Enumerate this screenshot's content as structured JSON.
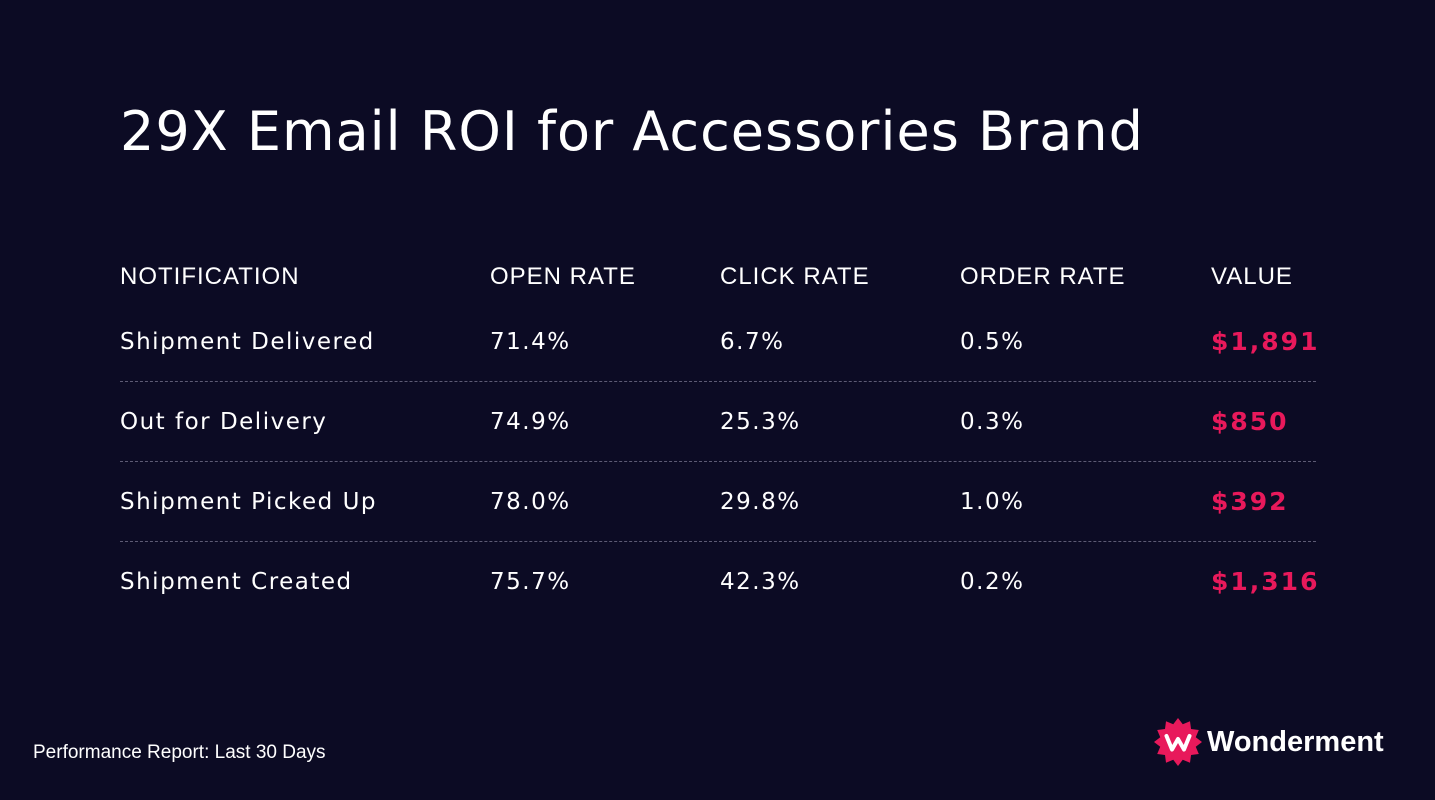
{
  "title": "29X Email ROI for Accessories Brand",
  "accent_color": "#e8195b",
  "background_color": "#0c0b24",
  "table": {
    "headers": {
      "notification": "NOTIFICATION",
      "open_rate": "OPEN RATE",
      "click_rate": "CLICK RATE",
      "order_rate": "ORDER RATE",
      "value": "VALUE"
    },
    "rows": [
      {
        "notification": "Shipment Delivered",
        "open_rate": "71.4%",
        "click_rate": "6.7%",
        "order_rate": "0.5%",
        "value": "$1,891"
      },
      {
        "notification": "Out for Delivery",
        "open_rate": "74.9%",
        "click_rate": "25.3%",
        "order_rate": "0.3%",
        "value": "$850"
      },
      {
        "notification": "Shipment Picked Up",
        "open_rate": "78.0%",
        "click_rate": "29.8%",
        "order_rate": "1.0%",
        "value": "$392"
      },
      {
        "notification": "Shipment Created",
        "open_rate": "75.7%",
        "click_rate": "42.3%",
        "order_rate": "0.2%",
        "value": "$1,316"
      }
    ]
  },
  "footer": {
    "report_label": "Performance Report: Last 30 Days",
    "brand_name": "Wonderment",
    "brand_icon": "wonderment-logo-icon"
  }
}
